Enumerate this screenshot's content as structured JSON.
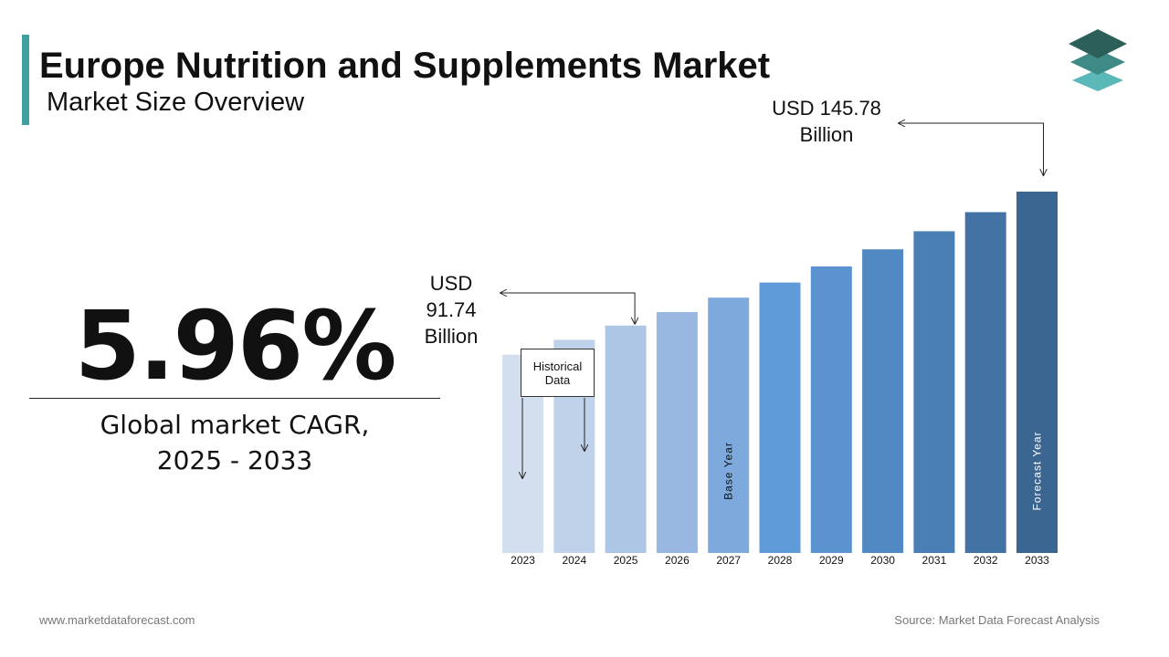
{
  "header": {
    "title": "Europe Nutrition and Supplements Market",
    "subtitle": "Market Size Overview"
  },
  "kpi": {
    "cagr": "5.96%",
    "label_line1": "Global market CAGR,",
    "label_line2": "2025 - 2033"
  },
  "callouts": {
    "start": {
      "line1": "USD",
      "line2": "91.74",
      "line3": "Billion"
    },
    "end": {
      "line1": "USD 145.78",
      "line2": "Billion"
    }
  },
  "historical_box": {
    "line1": "Historical",
    "line2": "Data"
  },
  "footer": {
    "website": "www.marketdataforecast.com",
    "source": "Source: Market Data Forecast Analysis"
  },
  "chart_data": {
    "type": "bar",
    "categories": [
      "2023",
      "2024",
      "2025",
      "2026",
      "2027",
      "2028",
      "2029",
      "2030",
      "2031",
      "2032",
      "2033"
    ],
    "values": [
      80,
      86,
      91.74,
      97.2,
      103.0,
      109.1,
      115.6,
      122.5,
      129.8,
      137.5,
      145.78
    ],
    "bar_annotations": {
      "2027": "Base Year",
      "2033": "Forecast Year"
    },
    "colors": [
      "#d3deef",
      "#c0d2ea",
      "#adc6e6",
      "#98b8e1",
      "#7da9dd",
      "#5f9bd8",
      "#5a93cf",
      "#5189c3",
      "#4a7fb5",
      "#4273a4",
      "#3b6691"
    ],
    "ylim": [
      0,
      150
    ]
  }
}
